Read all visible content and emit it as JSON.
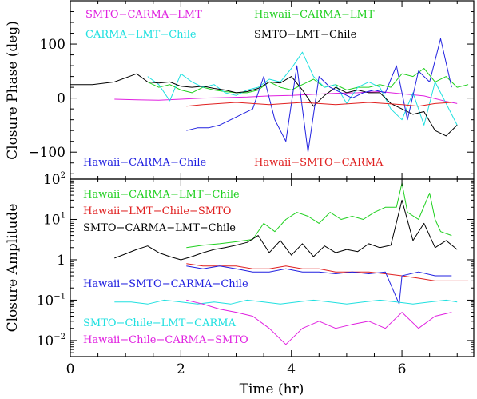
{
  "chart_data": [
    {
      "type": "line",
      "panel": "closure-phase",
      "title": "",
      "xlabel": "",
      "ylabel": "Closure Phase (deg)",
      "xlim": [
        0,
        7.3
      ],
      "ylim": [
        -150,
        180
      ],
      "yticks": [
        {
          "value": 100,
          "label": "100"
        },
        {
          "value": 0,
          "label": "0"
        },
        {
          "value": -100,
          "label": "−100"
        }
      ],
      "series": [
        {
          "name": "SMTO−CARMA−LMT",
          "color": "#e020e0",
          "x": [
            0.8,
            1.2,
            1.6,
            2.0,
            2.4,
            2.8,
            3.2,
            3.6,
            4.0,
            4.4,
            4.8,
            5.2,
            5.6,
            6.0,
            6.4,
            6.8,
            7.0
          ],
          "y": [
            -2,
            -3,
            -4,
            -2,
            0,
            1,
            2,
            4,
            5,
            7,
            9,
            10,
            12,
            8,
            4,
            -6,
            -10
          ]
        },
        {
          "name": "Hawaii−CARMA−LMT",
          "color": "#20d020",
          "x": [
            1.4,
            1.6,
            1.8,
            2.0,
            2.2,
            2.4,
            2.6,
            2.8,
            3.0,
            3.2,
            3.4,
            3.6,
            3.8,
            4.0,
            4.2,
            4.4,
            4.6,
            4.8,
            5.0,
            5.2,
            5.4,
            5.6,
            5.8,
            6.0,
            6.2,
            6.4,
            6.6,
            6.8,
            7.0,
            7.2
          ],
          "y": [
            30,
            20,
            25,
            15,
            10,
            20,
            15,
            12,
            10,
            10,
            15,
            30,
            20,
            15,
            25,
            35,
            20,
            25,
            15,
            20,
            20,
            25,
            20,
            45,
            40,
            55,
            30,
            40,
            20,
            25
          ]
        },
        {
          "name": "CARMA−LMT−Chile",
          "color": "#20e0e0",
          "x": [
            1.4,
            1.6,
            1.8,
            2.0,
            2.2,
            2.4,
            2.6,
            2.8,
            3.0,
            3.2,
            3.4,
            3.6,
            3.8,
            4.0,
            4.2,
            4.4,
            4.6,
            4.8,
            5.0,
            5.2,
            5.4,
            5.6,
            5.8,
            6.0,
            6.2,
            6.4,
            6.6,
            6.8,
            7.0
          ],
          "y": [
            40,
            25,
            -5,
            45,
            30,
            20,
            25,
            10,
            5,
            15,
            20,
            35,
            30,
            55,
            85,
            40,
            20,
            25,
            -10,
            20,
            30,
            20,
            -20,
            -40,
            10,
            -50,
            30,
            -10,
            -50
          ]
        },
        {
          "name": "SMTO−LMT−Chile",
          "color": "#000000",
          "x": [
            0,
            0.4,
            0.8,
            1.2,
            1.4,
            1.6,
            1.8,
            2.0,
            2.2,
            2.4,
            2.6,
            2.8,
            3.0,
            3.2,
            3.4,
            3.6,
            3.8,
            4.0,
            4.2,
            4.4,
            4.6,
            4.8,
            5.0,
            5.2,
            5.4,
            5.6,
            5.8,
            6.0,
            6.2,
            6.4,
            6.6,
            6.8,
            7.0
          ],
          "y": [
            25,
            25,
            30,
            45,
            30,
            28,
            30,
            22,
            20,
            22,
            18,
            15,
            10,
            12,
            18,
            30,
            28,
            40,
            15,
            -15,
            5,
            20,
            10,
            15,
            10,
            10,
            -10,
            -20,
            -30,
            -25,
            -60,
            -70,
            -50
          ]
        },
        {
          "name": "Hawaii−CARMA−Chile",
          "color": "#2020e0",
          "x": [
            2.1,
            2.3,
            2.5,
            2.7,
            2.9,
            3.1,
            3.3,
            3.5,
            3.7,
            3.9,
            4.1,
            4.3,
            4.5,
            4.7,
            4.9,
            5.1,
            5.3,
            5.5,
            5.7,
            5.9,
            6.1,
            6.3,
            6.5,
            6.7,
            6.9
          ],
          "y": [
            -60,
            -55,
            -55,
            -50,
            -40,
            -30,
            -20,
            40,
            -40,
            -80,
            60,
            -100,
            40,
            20,
            10,
            0,
            10,
            15,
            10,
            60,
            -40,
            50,
            30,
            110,
            20
          ]
        },
        {
          "name": "Hawaii−SMTO−CARMA",
          "color": "#e02020",
          "x": [
            2.1,
            2.4,
            2.7,
            3.0,
            3.3,
            3.6,
            3.9,
            4.2,
            4.5,
            4.8,
            5.1,
            5.4,
            5.7,
            6.0,
            6.3,
            6.6,
            6.9
          ],
          "y": [
            -15,
            -12,
            -10,
            -8,
            -10,
            -12,
            -10,
            -8,
            -10,
            -12,
            -10,
            -8,
            -10,
            -12,
            -15,
            -10,
            -8
          ]
        }
      ]
    },
    {
      "type": "line",
      "panel": "closure-amplitude",
      "title": "",
      "xlabel": "Time (hr)",
      "ylabel": "Closure Amplitude",
      "xlim": [
        0,
        7.3
      ],
      "ylim": [
        0.004,
        100
      ],
      "yscale": "log",
      "xticks": [
        {
          "value": 0,
          "label": "0"
        },
        {
          "value": 2,
          "label": "2"
        },
        {
          "value": 4,
          "label": "4"
        },
        {
          "value": 6,
          "label": "6"
        }
      ],
      "yticks": [
        {
          "value": 100,
          "base": "10",
          "exp": "2"
        },
        {
          "value": 10,
          "base": "10",
          "exp": "1"
        },
        {
          "value": 1,
          "base": "1",
          "exp": ""
        },
        {
          "value": 0.1,
          "base": "10",
          "exp": "−1"
        },
        {
          "value": 0.01,
          "base": "10",
          "exp": "−2"
        }
      ],
      "series": [
        {
          "name": "Hawaii−CARMA−LMT−Chile",
          "color": "#20d020",
          "x": [
            2.1,
            2.4,
            2.7,
            3.0,
            3.3,
            3.5,
            3.7,
            3.9,
            4.1,
            4.3,
            4.5,
            4.7,
            4.9,
            5.1,
            5.3,
            5.5,
            5.7,
            5.9,
            6.0,
            6.1,
            6.3,
            6.5,
            6.6,
            6.7,
            6.9
          ],
          "y": [
            2.0,
            2.3,
            2.5,
            2.8,
            3.2,
            8,
            5,
            10,
            15,
            12,
            8,
            15,
            10,
            12,
            10,
            15,
            20,
            20,
            80,
            15,
            10,
            45,
            10,
            5,
            4
          ]
        },
        {
          "name": "Hawaii−LMT−Chile−SMTO",
          "color": "#e02020",
          "x": [
            2.1,
            2.4,
            2.7,
            3.0,
            3.3,
            3.6,
            3.9,
            4.2,
            4.5,
            4.8,
            5.1,
            5.4,
            5.7,
            6.0,
            6.3,
            6.6,
            6.9,
            7.2
          ],
          "y": [
            0.8,
            0.7,
            0.7,
            0.7,
            0.6,
            0.6,
            0.7,
            0.6,
            0.6,
            0.5,
            0.5,
            0.5,
            0.45,
            0.4,
            0.35,
            0.3,
            0.3,
            0.3
          ]
        },
        {
          "name": "SMTO−CARMA−LMT−Chile",
          "color": "#000000",
          "x": [
            0.8,
            1.0,
            1.2,
            1.4,
            1.6,
            1.8,
            2.0,
            2.2,
            2.4,
            2.6,
            2.8,
            3.0,
            3.2,
            3.4,
            3.6,
            3.8,
            4.0,
            4.2,
            4.4,
            4.6,
            4.8,
            5.0,
            5.2,
            5.4,
            5.6,
            5.8,
            6.0,
            6.2,
            6.4,
            6.6,
            6.8,
            7.0
          ],
          "y": [
            1.1,
            1.4,
            1.8,
            2.2,
            1.5,
            1.2,
            1.0,
            1.2,
            1.5,
            1.8,
            2.0,
            2.3,
            2.7,
            4,
            1.5,
            3,
            1.3,
            2.5,
            1.2,
            2.2,
            1.5,
            1.8,
            1.6,
            2.5,
            2.0,
            2.3,
            30,
            3,
            8,
            2,
            3,
            1.8
          ]
        },
        {
          "name": "Hawaii−SMTO−CARMA−Chile",
          "color": "#2020e0",
          "x": [
            2.1,
            2.4,
            2.7,
            3.0,
            3.3,
            3.6,
            3.9,
            4.2,
            4.5,
            4.8,
            5.1,
            5.4,
            5.7,
            5.95,
            6.0,
            6.3,
            6.6,
            6.9
          ],
          "y": [
            0.7,
            0.6,
            0.7,
            0.6,
            0.5,
            0.5,
            0.6,
            0.5,
            0.5,
            0.45,
            0.5,
            0.45,
            0.5,
            0.08,
            0.4,
            0.5,
            0.4,
            0.4
          ]
        },
        {
          "name": "SMTO−Chile−LMT−CARMA",
          "color": "#20e0e0",
          "x": [
            0.8,
            1.1,
            1.4,
            1.7,
            2.0,
            2.3,
            2.6,
            2.9,
            3.2,
            3.5,
            3.8,
            4.1,
            4.4,
            4.7,
            5.0,
            5.3,
            5.6,
            5.9,
            6.2,
            6.5,
            6.8,
            7.0
          ],
          "y": [
            0.09,
            0.09,
            0.08,
            0.1,
            0.09,
            0.08,
            0.09,
            0.08,
            0.1,
            0.09,
            0.08,
            0.09,
            0.1,
            0.09,
            0.08,
            0.09,
            0.1,
            0.09,
            0.08,
            0.09,
            0.1,
            0.09
          ]
        },
        {
          "name": "Hawaii−Chile−CARMA−SMTO",
          "color": "#e020e0",
          "x": [
            2.1,
            2.4,
            2.7,
            3.0,
            3.3,
            3.6,
            3.9,
            4.2,
            4.5,
            4.8,
            5.1,
            5.4,
            5.7,
            6.0,
            6.3,
            6.6,
            6.9
          ],
          "y": [
            0.1,
            0.08,
            0.06,
            0.05,
            0.04,
            0.02,
            0.008,
            0.02,
            0.03,
            0.02,
            0.025,
            0.03,
            0.02,
            0.05,
            0.02,
            0.04,
            0.05
          ]
        }
      ]
    }
  ],
  "legend": {
    "top": [
      {
        "series": 0,
        "pos": "top-left"
      },
      {
        "series": 1,
        "pos": "top-right"
      },
      {
        "series": 2,
        "pos": "top-left"
      },
      {
        "series": 3,
        "pos": "top-right"
      },
      {
        "series": 4,
        "pos": "bottom-left"
      },
      {
        "series": 5,
        "pos": "bottom-right"
      }
    ],
    "bottom": [
      {
        "series": 0
      },
      {
        "series": 1
      },
      {
        "series": 2
      },
      {
        "series": 3
      },
      {
        "series": 4
      },
      {
        "series": 5
      }
    ]
  }
}
